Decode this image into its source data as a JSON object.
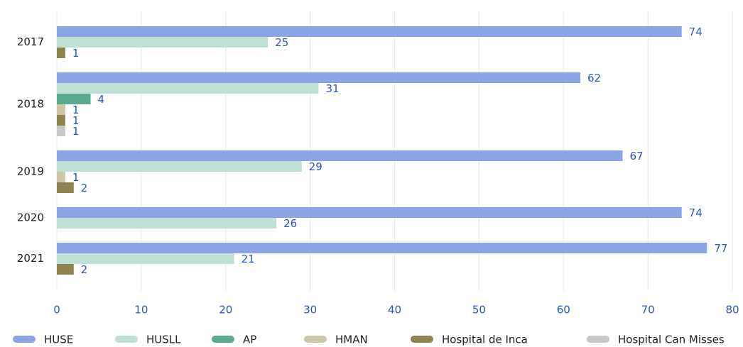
{
  "chart_data": {
    "type": "bar",
    "orientation": "horizontal",
    "categories": [
      "2017",
      "2018",
      "2019",
      "2020",
      "2021"
    ],
    "series": [
      {
        "name": "HUSE",
        "color": "#8aa4e6",
        "values": [
          74,
          62,
          67,
          74,
          77
        ]
      },
      {
        "name": "HUSLL",
        "color": "#bfe0d4",
        "values": [
          25,
          31,
          29,
          26,
          21
        ]
      },
      {
        "name": "AP",
        "color": "#5aab8e",
        "values": [
          null,
          4,
          null,
          null,
          null
        ]
      },
      {
        "name": "HMAN",
        "color": "#cfc6a8",
        "values": [
          null,
          1,
          1,
          null,
          null
        ]
      },
      {
        "name": "Hospital de Inca",
        "color": "#8f8350",
        "values": [
          1,
          1,
          2,
          null,
          2
        ]
      },
      {
        "name": "Hospital Can Misses",
        "color": "#c8c8c8",
        "values": [
          null,
          1,
          null,
          null,
          null
        ]
      }
    ],
    "xlim": [
      0,
      80
    ],
    "xticks": [
      0,
      10,
      20,
      30,
      40,
      50,
      60,
      70,
      80
    ],
    "grid": true,
    "legend": "bottom"
  }
}
